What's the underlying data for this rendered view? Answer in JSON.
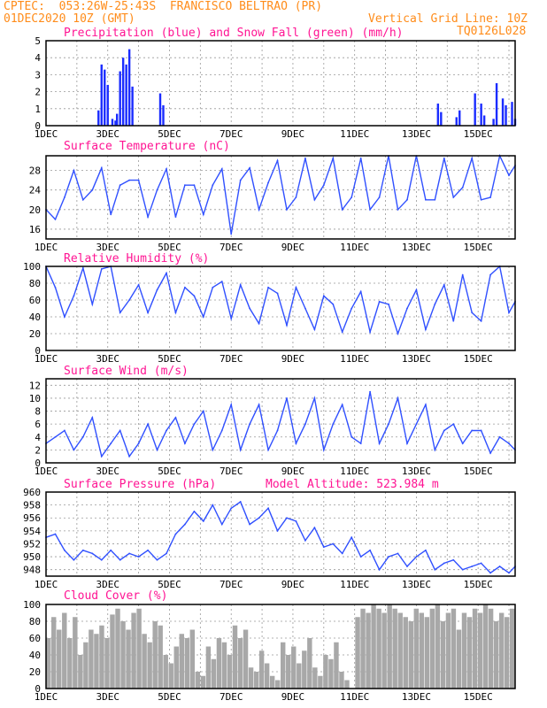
{
  "header": {
    "line1_left": "CPTEC:  053:26W-25:43S  FRANCISCO BELTRAO (PR)",
    "line2_left": "01DEC2020 10Z (GMT)",
    "line2_right": "Vertical Grid Line: 10Z",
    "line3_right": "TQ0126L028"
  },
  "colors": {
    "header": "#ff8c1a",
    "title": "#ff1493",
    "line": "#3050ff",
    "precip": "#1a2cff",
    "snow": "#1f9c1f",
    "cloud": "#a8a8a8"
  },
  "chart_data": [
    {
      "type": "bar",
      "title": "Precipitation (blue) and Snow Fall (green) (mm/h)",
      "xticks": [
        "1DEC",
        "3DEC",
        "5DEC",
        "7DEC",
        "9DEC",
        "11DEC",
        "13DEC",
        "15DEC"
      ],
      "ylim": [
        0,
        5
      ],
      "yticks": [
        "0",
        "1",
        "2",
        "3",
        "4",
        "5"
      ],
      "series": [
        {
          "name": "Precipitation",
          "color": "#1a2cff",
          "points": [
            [
              1.7,
              0.9
            ],
            [
              1.8,
              3.6
            ],
            [
              1.9,
              3.3
            ],
            [
              2.0,
              2.4
            ],
            [
              2.15,
              0.4
            ],
            [
              2.25,
              0.3
            ],
            [
              2.3,
              0.7
            ],
            [
              2.4,
              3.2
            ],
            [
              2.5,
              4.0
            ],
            [
              2.6,
              3.6
            ],
            [
              2.7,
              4.5
            ],
            [
              2.8,
              2.3
            ],
            [
              3.7,
              1.9
            ],
            [
              3.8,
              1.2
            ],
            [
              12.7,
              1.3
            ],
            [
              12.8,
              0.8
            ],
            [
              13.3,
              0.5
            ],
            [
              13.4,
              0.9
            ],
            [
              13.9,
              1.9
            ],
            [
              14.1,
              1.3
            ],
            [
              14.2,
              0.6
            ],
            [
              14.5,
              0.4
            ],
            [
              14.6,
              2.5
            ],
            [
              14.8,
              1.6
            ],
            [
              14.9,
              1.2
            ],
            [
              15.1,
              1.4
            ],
            [
              15.2,
              0.4
            ]
          ]
        },
        {
          "name": "Snow Fall",
          "color": "#1f9c1f",
          "points": []
        }
      ]
    },
    {
      "type": "line",
      "title": "Surface Temperature (nC)",
      "xticks": [
        "1DEC",
        "3DEC",
        "5DEC",
        "7DEC",
        "9DEC",
        "11DEC",
        "13DEC",
        "15DEC"
      ],
      "ylim": [
        14,
        31
      ],
      "yticks": [
        "16",
        "20",
        "24",
        "28"
      ],
      "x": [
        0,
        0.3,
        0.6,
        0.9,
        1.2,
        1.5,
        1.8,
        2.1,
        2.4,
        2.7,
        3.0,
        3.3,
        3.6,
        3.9,
        4.2,
        4.5,
        4.8,
        5.1,
        5.4,
        5.7,
        6.0,
        6.3,
        6.6,
        6.9,
        7.2,
        7.5,
        7.8,
        8.1,
        8.4,
        8.7,
        9.0,
        9.3,
        9.6,
        9.9,
        10.2,
        10.5,
        10.8,
        11.1,
        11.4,
        11.7,
        12.0,
        12.3,
        12.6,
        12.9,
        13.2,
        13.5,
        13.8,
        14.1,
        14.4,
        14.7,
        15.0,
        15.2
      ],
      "y": [
        20,
        18,
        22.5,
        28,
        22,
        24,
        28.5,
        19,
        25,
        26,
        26,
        18.5,
        24,
        28.3,
        18.5,
        25,
        25,
        19,
        25,
        28.3,
        15,
        26,
        28.5,
        20,
        25.5,
        30,
        20,
        22.5,
        30.5,
        22,
        25,
        30.5,
        20,
        22.5,
        30.5,
        20,
        22.5,
        31,
        20,
        22,
        31,
        22,
        22,
        30.5,
        22.5,
        24.5,
        30.5,
        22,
        22.5,
        31,
        27,
        29
      ]
    },
    {
      "type": "line",
      "title": "Relative Humidity (%)",
      "xticks": [
        "1DEC",
        "3DEC",
        "5DEC",
        "7DEC",
        "9DEC",
        "11DEC",
        "13DEC",
        "15DEC"
      ],
      "ylim": [
        0,
        100
      ],
      "yticks": [
        "0",
        "20",
        "40",
        "60",
        "80",
        "100"
      ],
      "x": [
        0,
        0.3,
        0.6,
        0.9,
        1.2,
        1.5,
        1.8,
        2.1,
        2.4,
        2.7,
        3.0,
        3.3,
        3.6,
        3.9,
        4.2,
        4.5,
        4.8,
        5.1,
        5.4,
        5.7,
        6.0,
        6.3,
        6.6,
        6.9,
        7.2,
        7.5,
        7.8,
        8.1,
        8.4,
        8.7,
        9.0,
        9.3,
        9.6,
        9.9,
        10.2,
        10.5,
        10.8,
        11.1,
        11.4,
        11.7,
        12.0,
        12.3,
        12.6,
        12.9,
        13.2,
        13.5,
        13.8,
        14.1,
        14.4,
        14.7,
        15.0,
        15.2
      ],
      "y": [
        100,
        75,
        40,
        65,
        98,
        55,
        97,
        100,
        45,
        60,
        78,
        45,
        72,
        92,
        45,
        75,
        65,
        40,
        75,
        82,
        38,
        78,
        50,
        32,
        75,
        68,
        30,
        75,
        50,
        25,
        65,
        55,
        22,
        50,
        70,
        22,
        58,
        55,
        20,
        50,
        72,
        25,
        55,
        78,
        35,
        90,
        45,
        35,
        90,
        100,
        45,
        58
      ]
    },
    {
      "type": "line",
      "title": "Surface Wind (m/s)",
      "xticks": [
        "1DEC",
        "3DEC",
        "5DEC",
        "7DEC",
        "9DEC",
        "11DEC",
        "13DEC",
        "15DEC"
      ],
      "ylim": [
        0,
        13
      ],
      "yticks": [
        "0",
        "2",
        "4",
        "6",
        "8",
        "10",
        "12"
      ],
      "x": [
        0,
        0.3,
        0.6,
        0.9,
        1.2,
        1.5,
        1.8,
        2.1,
        2.4,
        2.7,
        3.0,
        3.3,
        3.6,
        3.9,
        4.2,
        4.5,
        4.8,
        5.1,
        5.4,
        5.7,
        6.0,
        6.3,
        6.6,
        6.9,
        7.2,
        7.5,
        7.8,
        8.1,
        8.4,
        8.7,
        9.0,
        9.3,
        9.6,
        9.9,
        10.2,
        10.5,
        10.8,
        11.1,
        11.4,
        11.7,
        12.0,
        12.3,
        12.6,
        12.9,
        13.2,
        13.5,
        13.8,
        14.1,
        14.4,
        14.7,
        15.0,
        15.2
      ],
      "y": [
        3,
        4,
        5,
        2,
        4,
        7,
        1,
        3,
        5,
        1,
        3,
        6,
        2,
        5,
        7,
        3,
        6,
        8,
        2,
        5,
        9,
        2,
        6,
        9,
        2,
        5,
        10,
        3,
        6,
        10,
        2,
        6,
        9,
        4,
        3,
        11,
        3,
        6,
        10,
        3,
        6,
        9,
        2,
        5,
        6,
        3,
        5,
        5,
        1.5,
        4,
        3,
        2
      ]
    },
    {
      "type": "line",
      "title": "Surface Pressure (hPa)",
      "annotation": "Model Altitude: 523.984 m",
      "xticks": [
        "1DEC",
        "3DEC",
        "5DEC",
        "7DEC",
        "9DEC",
        "11DEC",
        "13DEC",
        "15DEC"
      ],
      "ylim": [
        947,
        960
      ],
      "yticks": [
        "948",
        "950",
        "952",
        "954",
        "956",
        "958",
        "960"
      ],
      "x": [
        0,
        0.3,
        0.6,
        0.9,
        1.2,
        1.5,
        1.8,
        2.1,
        2.4,
        2.7,
        3.0,
        3.3,
        3.6,
        3.9,
        4.2,
        4.5,
        4.8,
        5.1,
        5.4,
        5.7,
        6.0,
        6.3,
        6.6,
        6.9,
        7.2,
        7.5,
        7.8,
        8.1,
        8.4,
        8.7,
        9.0,
        9.3,
        9.6,
        9.9,
        10.2,
        10.5,
        10.8,
        11.1,
        11.4,
        11.7,
        12.0,
        12.3,
        12.6,
        12.9,
        13.2,
        13.5,
        13.8,
        14.1,
        14.4,
        14.7,
        15.0,
        15.2
      ],
      "y": [
        953,
        953.5,
        951,
        949.5,
        951,
        950.5,
        949.5,
        951,
        949.5,
        950.5,
        950,
        951,
        949.5,
        950.5,
        953.5,
        955,
        957,
        955.5,
        958,
        955,
        957.5,
        958.5,
        955,
        956,
        957.5,
        954,
        956,
        955.5,
        952.5,
        954.5,
        951.5,
        952,
        950.5,
        953,
        950,
        951,
        948,
        950,
        950.5,
        948.5,
        950,
        951,
        948,
        949,
        949.5,
        948,
        948.5,
        949,
        947.5,
        948.5,
        947.5,
        948.5
      ]
    },
    {
      "type": "bar",
      "title": "Cloud Cover (%)",
      "xticks": [
        "1DEC",
        "3DEC",
        "5DEC",
        "7DEC",
        "9DEC",
        "11DEC",
        "13DEC",
        "15DEC"
      ],
      "ylim": [
        0,
        100
      ],
      "yticks": [
        "0",
        "20",
        "40",
        "60",
        "80",
        "100"
      ],
      "values": [
        60,
        85,
        70,
        90,
        60,
        85,
        40,
        55,
        70,
        65,
        75,
        60,
        88,
        95,
        80,
        70,
        90,
        95,
        65,
        55,
        80,
        75,
        40,
        30,
        50,
        65,
        60,
        70,
        20,
        15,
        50,
        35,
        60,
        55,
        40,
        75,
        60,
        70,
        25,
        20,
        45,
        30,
        15,
        10,
        55,
        40,
        50,
        30,
        45,
        60,
        25,
        15,
        40,
        35,
        55,
        20,
        10,
        0,
        85,
        95,
        90,
        100,
        95,
        90,
        100,
        95,
        90,
        85,
        80,
        95,
        90,
        85,
        95,
        100,
        80,
        90,
        95,
        70,
        90,
        85,
        95,
        90,
        100,
        95,
        80,
        90,
        85,
        95
      ]
    }
  ]
}
